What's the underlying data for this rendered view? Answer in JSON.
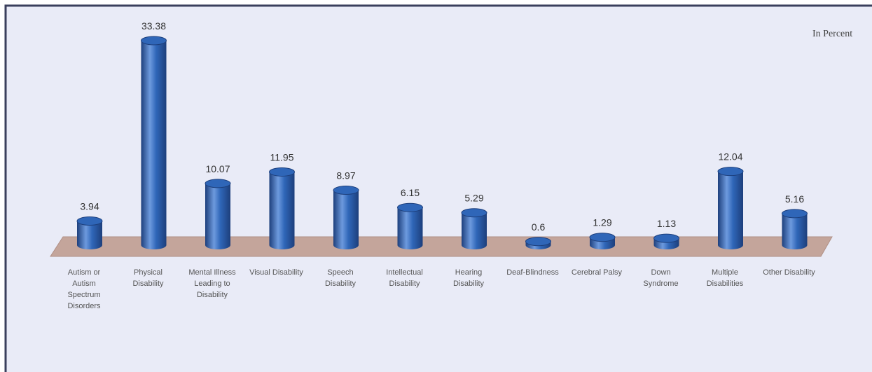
{
  "chart_data": {
    "type": "bar",
    "title": "",
    "unit_note": "In Percent",
    "xlabel": "",
    "ylabel": "",
    "ylim": [
      0,
      35
    ],
    "grid": false,
    "categories": [
      [
        "Autism or",
        "Autism",
        "Spectrum",
        "Disorders"
      ],
      [
        "Physical",
        "Disability"
      ],
      [
        "Mental Illness",
        "Leading to",
        "Disability"
      ],
      [
        "Visual Disability"
      ],
      [
        "Speech",
        "Disability"
      ],
      [
        "Intellectual",
        "Disability"
      ],
      [
        "Hearing",
        "Disability"
      ],
      [
        "Deaf-Blindness"
      ],
      [
        "Cerebral Palsy"
      ],
      [
        "Down",
        "Syndrome"
      ],
      [
        "Multiple",
        "Disabilities"
      ],
      [
        "Other Disability"
      ]
    ],
    "values": [
      3.94,
      33.38,
      10.07,
      11.95,
      8.97,
      6.15,
      5.29,
      0.6,
      1.29,
      1.13,
      12.04,
      5.16
    ],
    "value_labels": [
      "3.94",
      "33.38",
      "10.07",
      "11.95",
      "8.97",
      "6.15",
      "5.29",
      "0.6",
      "1.29",
      "1.13",
      "12.04",
      "5.16"
    ],
    "colors": {
      "background": "#e9ebf7",
      "frame": "#3a3f5c",
      "bar": "#2f66b8",
      "bar_dark": "#1d3f7c",
      "bar_light": "#6d9ade",
      "floor": "#c4a59b",
      "floor_edge": "#b08f85"
    }
  }
}
